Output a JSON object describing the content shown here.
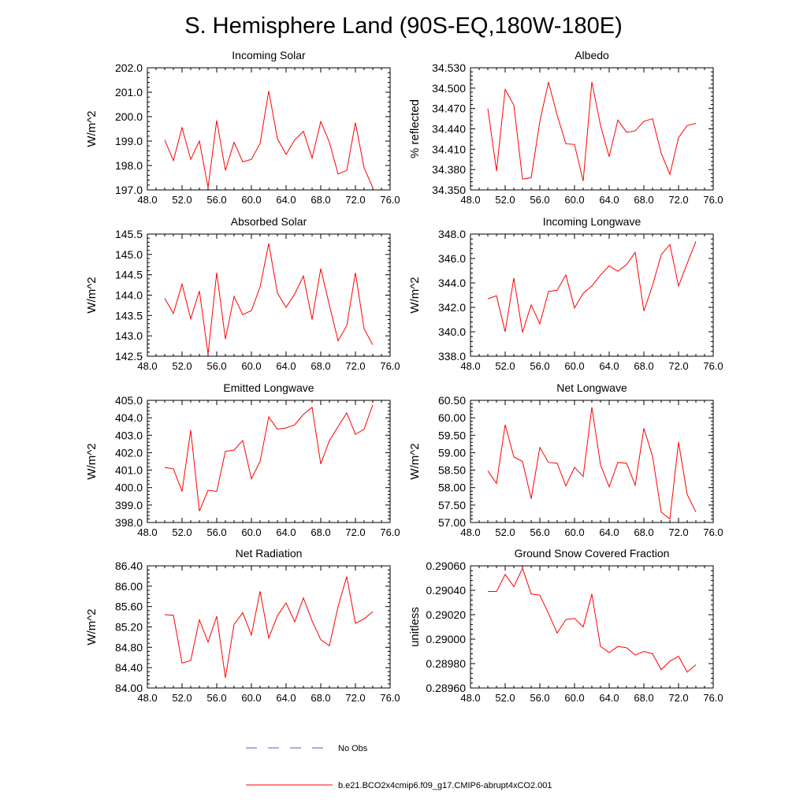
{
  "title": "S. Hemisphere Land (90S-EQ,180W-180E)",
  "legend": {
    "obs_label": "No Obs",
    "obs_color": "#4a5fd0",
    "model_label": "b.e21.BCO2x4cmip6.f09_g17.CMIP6-abrupt4xCO2.001",
    "model_color": "#ff0000"
  },
  "chart_data": [
    {
      "type": "line",
      "title": "Incoming Solar",
      "ylabel": "W/m^2",
      "xlabel": "",
      "xlim": [
        48,
        76
      ],
      "ylim": [
        197,
        202
      ],
      "xticks": [
        "48.0",
        "52.0",
        "56.0",
        "60.0",
        "64.0",
        "68.0",
        "72.0",
        "76.0"
      ],
      "yticks": [
        "197.0",
        "198.0",
        "199.0",
        "200.0",
        "201.0",
        "202.0"
      ],
      "x": [
        50,
        51,
        52,
        53,
        54,
        55,
        56,
        57,
        58,
        59,
        60,
        61,
        62,
        63,
        64,
        65,
        66,
        67,
        68,
        69,
        70,
        71,
        72,
        73,
        74
      ],
      "series": [
        {
          "name": "b.e21.BCO2x4cmip6.f09_g17.CMIP6-abrupt4xCO2.001",
          "values": [
            199.05,
            198.2,
            199.55,
            198.25,
            199.0,
            197.1,
            199.85,
            197.8,
            198.95,
            198.15,
            198.25,
            198.9,
            201.05,
            199.1,
            198.45,
            199.05,
            199.4,
            198.3,
            199.8,
            198.95,
            197.65,
            197.8,
            199.75,
            197.9,
            197.1
          ]
        }
      ]
    },
    {
      "type": "line",
      "title": "Albedo",
      "ylabel": "% reflected",
      "xlabel": "",
      "xlim": [
        48,
        76
      ],
      "ylim": [
        34.35,
        34.53
      ],
      "xticks": [
        "48.0",
        "52.0",
        "56.0",
        "60.0",
        "64.0",
        "68.0",
        "72.0",
        "76.0"
      ],
      "yticks": [
        "34.350",
        "34.380",
        "34.410",
        "34.440",
        "34.470",
        "34.500",
        "34.530"
      ],
      "x": [
        50,
        51,
        52,
        53,
        54,
        55,
        56,
        57,
        58,
        59,
        60,
        61,
        62,
        63,
        64,
        65,
        66,
        67,
        68,
        69,
        70,
        71,
        72,
        73,
        74
      ],
      "series": [
        {
          "name": "b.e21.BCO2x4cmip6.f09_g17.CMIP6-abrupt4xCO2.001",
          "values": [
            34.47,
            34.378,
            34.498,
            34.475,
            34.366,
            34.368,
            34.451,
            34.509,
            34.46,
            34.418,
            34.417,
            34.363,
            34.509,
            34.445,
            34.399,
            34.453,
            34.435,
            34.437,
            34.451,
            34.455,
            34.404,
            34.373,
            34.427,
            34.445,
            34.448
          ]
        }
      ]
    },
    {
      "type": "line",
      "title": "Absorbed Solar",
      "ylabel": "W/m^2",
      "xlabel": "",
      "xlim": [
        48,
        76
      ],
      "ylim": [
        142.5,
        145.5
      ],
      "xticks": [
        "48.0",
        "52.0",
        "56.0",
        "60.0",
        "64.0",
        "68.0",
        "72.0",
        "76.0"
      ],
      "yticks": [
        "142.5",
        "143.0",
        "143.5",
        "144.0",
        "144.5",
        "145.0",
        "145.5"
      ],
      "x": [
        50,
        51,
        52,
        53,
        54,
        55,
        56,
        57,
        58,
        59,
        60,
        61,
        62,
        63,
        64,
        65,
        66,
        67,
        68,
        69,
        70,
        71,
        72,
        73,
        74
      ],
      "series": [
        {
          "name": "b.e21.BCO2x4cmip6.f09_g17.CMIP6-abrupt4xCO2.001",
          "values": [
            143.92,
            143.55,
            144.27,
            143.42,
            144.1,
            142.55,
            144.55,
            142.92,
            143.97,
            143.52,
            143.62,
            144.2,
            145.27,
            144.05,
            143.7,
            144.03,
            144.47,
            143.4,
            144.65,
            143.75,
            142.88,
            143.25,
            144.55,
            143.17,
            142.78
          ]
        }
      ]
    },
    {
      "type": "line",
      "title": "Incoming Longwave",
      "ylabel": "W/m^2",
      "xlabel": "",
      "xlim": [
        48,
        76
      ],
      "ylim": [
        338,
        348
      ],
      "xticks": [
        "48.0",
        "52.0",
        "56.0",
        "60.0",
        "64.0",
        "68.0",
        "72.0",
        "76.0"
      ],
      "yticks": [
        "338.0",
        "340.0",
        "342.0",
        "344.0",
        "346.0",
        "348.0"
      ],
      "x": [
        50,
        51,
        52,
        53,
        54,
        55,
        56,
        57,
        58,
        59,
        60,
        61,
        62,
        63,
        64,
        65,
        66,
        67,
        68,
        69,
        70,
        71,
        72,
        73,
        74
      ],
      "series": [
        {
          "name": "b.e21.BCO2x4cmip6.f09_g17.CMIP6-abrupt4xCO2.001",
          "values": [
            342.7,
            342.95,
            340.0,
            344.4,
            339.95,
            342.2,
            340.65,
            343.3,
            343.4,
            344.65,
            341.95,
            343.15,
            343.75,
            344.65,
            345.4,
            344.95,
            345.5,
            346.5,
            341.7,
            343.8,
            346.3,
            347.15,
            343.75,
            345.6,
            347.4
          ]
        }
      ]
    },
    {
      "type": "line",
      "title": "Emitted Longwave",
      "ylabel": "W/m^2",
      "xlabel": "",
      "xlim": [
        48,
        76
      ],
      "ylim": [
        398,
        405
      ],
      "xticks": [
        "48.0",
        "52.0",
        "56.0",
        "60.0",
        "64.0",
        "68.0",
        "72.0",
        "76.0"
      ],
      "yticks": [
        "398.0",
        "399.0",
        "400.0",
        "401.0",
        "402.0",
        "403.0",
        "404.0",
        "405.0"
      ],
      "x": [
        50,
        51,
        52,
        53,
        54,
        55,
        56,
        57,
        58,
        59,
        60,
        61,
        62,
        63,
        64,
        65,
        66,
        67,
        68,
        69,
        70,
        71,
        72,
        73,
        74
      ],
      "series": [
        {
          "name": "b.e21.BCO2x4cmip6.f09_g17.CMIP6-abrupt4xCO2.001",
          "values": [
            401.15,
            401.08,
            399.78,
            403.3,
            398.65,
            399.85,
            399.78,
            402.08,
            402.15,
            402.7,
            400.5,
            401.5,
            404.05,
            403.35,
            403.42,
            403.6,
            404.2,
            404.6,
            401.35,
            402.7,
            403.5,
            404.28,
            403.05,
            403.35,
            404.75
          ]
        }
      ]
    },
    {
      "type": "line",
      "title": "Net Longwave",
      "ylabel": "W/m^2",
      "xlabel": "",
      "xlim": [
        48,
        76
      ],
      "ylim": [
        57,
        60.5
      ],
      "xticks": [
        "48.0",
        "52.0",
        "56.0",
        "60.0",
        "64.0",
        "68.0",
        "72.0",
        "76.0"
      ],
      "yticks": [
        "57.00",
        "57.50",
        "58.00",
        "58.50",
        "59.00",
        "59.50",
        "60.00",
        "60.50"
      ],
      "x": [
        50,
        51,
        52,
        53,
        54,
        55,
        56,
        57,
        58,
        59,
        60,
        61,
        62,
        63,
        64,
        65,
        66,
        67,
        68,
        69,
        70,
        71,
        72,
        73,
        74
      ],
      "series": [
        {
          "name": "b.e21.BCO2x4cmip6.f09_g17.CMIP6-abrupt4xCO2.001",
          "values": [
            58.48,
            58.12,
            59.8,
            58.88,
            58.75,
            57.68,
            59.15,
            58.72,
            58.7,
            58.05,
            58.58,
            58.32,
            60.3,
            58.65,
            58.02,
            58.72,
            58.7,
            58.07,
            59.7,
            58.9,
            57.3,
            57.1,
            59.3,
            57.8,
            57.3
          ]
        }
      ]
    },
    {
      "type": "line",
      "title": "Net Radiation",
      "ylabel": "W/m^2",
      "xlabel": "",
      "xlim": [
        48,
        76
      ],
      "ylim": [
        84,
        86.4
      ],
      "xticks": [
        "48.0",
        "52.0",
        "56.0",
        "60.0",
        "64.0",
        "68.0",
        "72.0",
        "76.0"
      ],
      "yticks": [
        "84.00",
        "84.40",
        "84.80",
        "85.20",
        "85.60",
        "86.00",
        "86.40"
      ],
      "x": [
        50,
        51,
        52,
        53,
        54,
        55,
        56,
        57,
        58,
        59,
        60,
        61,
        62,
        63,
        64,
        65,
        66,
        67,
        68,
        69,
        70,
        71,
        72,
        73,
        74
      ],
      "series": [
        {
          "name": "b.e21.BCO2x4cmip6.f09_g17.CMIP6-abrupt4xCO2.001",
          "values": [
            85.44,
            85.43,
            84.49,
            84.54,
            85.34,
            84.9,
            85.41,
            84.2,
            85.25,
            85.48,
            85.04,
            85.9,
            84.98,
            85.42,
            85.67,
            85.3,
            85.77,
            85.32,
            84.95,
            84.83,
            85.6,
            86.19,
            85.27,
            85.36,
            85.5
          ]
        }
      ]
    },
    {
      "type": "line",
      "title": "Ground Snow Covered Fraction",
      "ylabel": "unitless",
      "xlabel": "",
      "xlim": [
        48,
        76
      ],
      "ylim": [
        0.2896,
        0.2906
      ],
      "xticks": [
        "48.0",
        "52.0",
        "56.0",
        "60.0",
        "64.0",
        "68.0",
        "72.0",
        "76.0"
      ],
      "yticks": [
        "0.28960",
        "0.28980",
        "0.29000",
        "0.29020",
        "0.29040",
        "0.29060"
      ],
      "x": [
        50,
        51,
        52,
        53,
        54,
        55,
        56,
        57,
        58,
        59,
        60,
        61,
        62,
        63,
        64,
        65,
        66,
        67,
        68,
        69,
        70,
        71,
        72,
        73,
        74
      ],
      "series": [
        {
          "name": "b.e21.BCO2x4cmip6.f09_g17.CMIP6-abrupt4xCO2.001",
          "values": [
            0.29039,
            0.29039,
            0.29053,
            0.29043,
            0.29058,
            0.29037,
            0.29036,
            0.29021,
            0.29005,
            0.29016,
            0.29017,
            0.2901,
            0.29037,
            0.28994,
            0.28989,
            0.28994,
            0.28993,
            0.28987,
            0.2899,
            0.28988,
            0.28975,
            0.28982,
            0.28986,
            0.28973,
            0.28979
          ]
        }
      ]
    }
  ]
}
